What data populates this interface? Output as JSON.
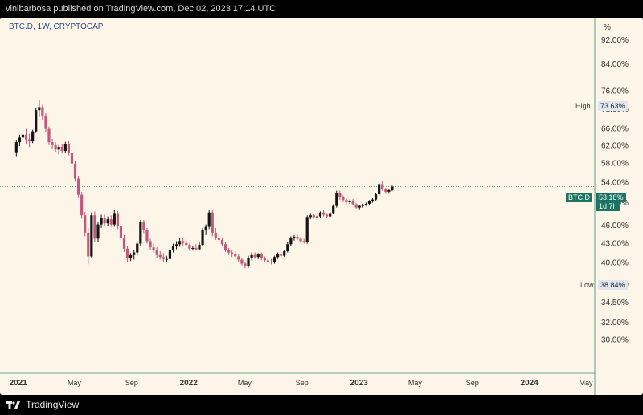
{
  "header": {
    "publisher_line": "vinibarbosa published on TradingView.com, Dec 02, 2023 17:14 UTC"
  },
  "chart_header": {
    "symbol_line": "BTC.D, 1W, CRYPTOCAP"
  },
  "axis": {
    "unit_label": "%"
  },
  "markers": {
    "high_label": "High",
    "high_value": "73.63%",
    "low_label": "Low",
    "low_value": "38.84%",
    "symbol_tag": "BTC.D",
    "current_value": "53.18%",
    "countdown": "1d 7h"
  },
  "footer": {
    "brand": "TradingView"
  },
  "colors": {
    "up": "#141414",
    "down": "#c2587a",
    "background": "#fdf5e8",
    "price_line": "#1d7362"
  },
  "chart_data": {
    "type": "candlestick",
    "title": "BTC.D, 1W, CRYPTOCAP",
    "y_scale": "log",
    "y_unit": "%",
    "ylim": [
      26.5,
      100
    ],
    "xlim": [
      "2020-11-23",
      "2024-05-20"
    ],
    "y_ticks": [
      "92.00%",
      "84.00%",
      "76.00%",
      "71.00%",
      "66.00%",
      "62.00%",
      "58.00%",
      "54.00%",
      "50.00%",
      "46.00%",
      "43.00%",
      "40.00%",
      "37.00%",
      "34.50%",
      "32.00%",
      "30.00%"
    ],
    "x_ticks": [
      {
        "date": "2021-01-01",
        "label": "2021"
      },
      {
        "date": "2021-05-01",
        "label": "May"
      },
      {
        "date": "2021-09-01",
        "label": "Sep"
      },
      {
        "date": "2022-01-01",
        "label": "2022"
      },
      {
        "date": "2022-05-01",
        "label": "May"
      },
      {
        "date": "2022-09-01",
        "label": "Sep"
      },
      {
        "date": "2023-01-01",
        "label": "2023"
      },
      {
        "date": "2023-05-01",
        "label": "May"
      },
      {
        "date": "2023-09-01",
        "label": "Sep"
      },
      {
        "date": "2024-01-01",
        "label": "2024"
      },
      {
        "date": "2024-05-01",
        "label": "May"
      }
    ],
    "high": 73.63,
    "low": 38.84,
    "last": 53.18,
    "series": [
      {
        "name": "BTC.D",
        "ohlc": [
          [
            60.5,
            63.2,
            59.6,
            62.8
          ],
          [
            62.8,
            64.6,
            61.9,
            63.9
          ],
          [
            63.9,
            65.5,
            63.0,
            64.6
          ],
          [
            64.6,
            66.0,
            62.5,
            63.5
          ],
          [
            63.5,
            64.8,
            61.7,
            63.0
          ],
          [
            63.0,
            65.8,
            62.6,
            65.4
          ],
          [
            65.4,
            71.5,
            65.0,
            70.8
          ],
          [
            70.8,
            73.63,
            69.0,
            71.6
          ],
          [
            71.6,
            72.2,
            68.2,
            69.4
          ],
          [
            69.4,
            70.0,
            65.2,
            66.0
          ],
          [
            66.0,
            66.6,
            62.1,
            62.8
          ],
          [
            62.8,
            63.6,
            61.3,
            62.1
          ],
          [
            62.1,
            62.8,
            60.6,
            61.1
          ],
          [
            61.1,
            62.2,
            60.0,
            61.7
          ],
          [
            61.7,
            62.4,
            60.2,
            60.8
          ],
          [
            60.8,
            62.9,
            60.4,
            62.4
          ],
          [
            62.4,
            63.0,
            59.8,
            60.4
          ],
          [
            60.4,
            61.0,
            57.2,
            58.0
          ],
          [
            58.0,
            58.6,
            54.2,
            54.8
          ],
          [
            54.8,
            55.4,
            51.0,
            51.6
          ],
          [
            51.6,
            52.2,
            47.2,
            47.8
          ],
          [
            47.8,
            48.4,
            44.2,
            44.8
          ],
          [
            44.8,
            45.6,
            39.8,
            41.0
          ],
          [
            41.0,
            48.3,
            40.8,
            47.8
          ],
          [
            47.8,
            48.5,
            43.2,
            43.8
          ],
          [
            43.8,
            46.6,
            43.2,
            46.2
          ],
          [
            46.2,
            47.9,
            45.6,
            47.4
          ],
          [
            47.4,
            47.9,
            46.0,
            46.4
          ],
          [
            46.4,
            47.6,
            45.9,
            47.1
          ],
          [
            47.1,
            47.8,
            45.8,
            46.2
          ],
          [
            46.2,
            48.8,
            45.8,
            48.2
          ],
          [
            48.2,
            48.6,
            45.4,
            45.9
          ],
          [
            45.9,
            46.3,
            43.4,
            43.9
          ],
          [
            43.9,
            44.4,
            41.7,
            42.2
          ],
          [
            42.2,
            42.6,
            40.2,
            40.7
          ],
          [
            40.7,
            41.5,
            40.3,
            41.2
          ],
          [
            41.2,
            42.0,
            40.5,
            41.6
          ],
          [
            41.6,
            43.4,
            41.1,
            43.0
          ],
          [
            43.0,
            47.0,
            42.6,
            46.6
          ],
          [
            46.6,
            47.0,
            44.7,
            45.2
          ],
          [
            45.2,
            45.6,
            43.0,
            43.4
          ],
          [
            43.4,
            43.8,
            42.0,
            42.4
          ],
          [
            42.4,
            43.0,
            41.6,
            42.0
          ],
          [
            42.0,
            42.4,
            40.8,
            41.2
          ],
          [
            41.2,
            41.8,
            40.5,
            40.9
          ],
          [
            40.9,
            41.5,
            40.2,
            40.6
          ],
          [
            40.6,
            41.1,
            40.2,
            40.6
          ],
          [
            40.6,
            42.3,
            40.4,
            42.0
          ],
          [
            42.0,
            43.0,
            41.6,
            42.6
          ],
          [
            42.6,
            43.4,
            42.1,
            42.9
          ],
          [
            42.9,
            43.9,
            42.5,
            43.4
          ],
          [
            43.4,
            43.9,
            42.7,
            43.1
          ],
          [
            43.1,
            43.6,
            42.6,
            42.8
          ],
          [
            42.8,
            43.0,
            41.9,
            42.2
          ],
          [
            42.2,
            42.6,
            41.9,
            42.3
          ],
          [
            42.3,
            42.9,
            41.9,
            42.1
          ],
          [
            42.1,
            43.2,
            41.9,
            42.8
          ],
          [
            42.8,
            45.6,
            42.6,
            45.3
          ],
          [
            45.3,
            46.2,
            44.4,
            45.8
          ],
          [
            45.8,
            48.8,
            45.4,
            48.3
          ],
          [
            48.3,
            48.7,
            44.2,
            44.8
          ],
          [
            44.8,
            45.6,
            43.6,
            44.0
          ],
          [
            44.0,
            44.6,
            43.2,
            43.6
          ],
          [
            43.6,
            44.0,
            42.6,
            42.9
          ],
          [
            42.9,
            43.3,
            41.7,
            42.0
          ],
          [
            42.0,
            42.3,
            41.2,
            41.6
          ],
          [
            41.6,
            42.0,
            40.9,
            41.3
          ],
          [
            41.3,
            41.8,
            40.6,
            41.0
          ],
          [
            41.0,
            41.4,
            40.2,
            40.5
          ],
          [
            40.5,
            40.8,
            39.6,
            39.9
          ],
          [
            39.9,
            40.2,
            39.2,
            39.5
          ],
          [
            39.5,
            41.1,
            39.3,
            40.8
          ],
          [
            40.8,
            41.6,
            40.4,
            41.2
          ],
          [
            41.2,
            41.6,
            40.6,
            40.9
          ],
          [
            40.9,
            41.5,
            40.6,
            41.3
          ],
          [
            41.3,
            41.6,
            40.4,
            40.7
          ],
          [
            40.7,
            41.0,
            40.1,
            40.4
          ],
          [
            40.4,
            40.8,
            39.9,
            40.2
          ],
          [
            40.2,
            40.6,
            39.8,
            40.1
          ],
          [
            40.1,
            41.1,
            39.9,
            40.9
          ],
          [
            40.9,
            41.6,
            40.6,
            41.3
          ],
          [
            41.3,
            41.7,
            40.8,
            41.1
          ],
          [
            41.1,
            42.0,
            40.9,
            41.8
          ],
          [
            41.8,
            43.2,
            41.6,
            42.9
          ],
          [
            42.9,
            44.2,
            42.6,
            43.9
          ],
          [
            43.9,
            44.4,
            43.5,
            44.1
          ],
          [
            44.1,
            44.6,
            43.6,
            43.8
          ],
          [
            43.8,
            44.1,
            43.1,
            43.4
          ],
          [
            43.4,
            43.8,
            43.0,
            43.2
          ],
          [
            43.2,
            47.8,
            43.0,
            47.5
          ],
          [
            47.5,
            48.2,
            47.1,
            47.8
          ],
          [
            47.8,
            48.1,
            47.2,
            47.5
          ],
          [
            47.5,
            48.0,
            47.0,
            47.6
          ],
          [
            47.6,
            48.5,
            47.4,
            48.3
          ],
          [
            48.3,
            48.7,
            47.6,
            47.9
          ],
          [
            47.9,
            48.2,
            47.3,
            47.6
          ],
          [
            47.6,
            48.4,
            47.4,
            48.2
          ],
          [
            48.2,
            49.8,
            48.0,
            49.5
          ],
          [
            49.5,
            52.4,
            49.2,
            52.0
          ],
          [
            52.0,
            52.4,
            50.6,
            51.1
          ],
          [
            51.1,
            51.5,
            50.2,
            50.6
          ],
          [
            50.6,
            50.9,
            49.8,
            50.2
          ],
          [
            50.2,
            50.7,
            49.9,
            50.4
          ],
          [
            50.4,
            50.8,
            49.6,
            49.8
          ],
          [
            49.8,
            50.0,
            49.0,
            49.2
          ],
          [
            49.2,
            49.7,
            48.9,
            49.5
          ],
          [
            49.5,
            49.9,
            49.2,
            49.7
          ],
          [
            49.7,
            50.1,
            49.5,
            49.9
          ],
          [
            49.9,
            50.6,
            49.7,
            50.4
          ],
          [
            50.4,
            50.9,
            50.1,
            50.7
          ],
          [
            50.7,
            51.9,
            50.5,
            51.7
          ],
          [
            51.7,
            53.9,
            51.5,
            53.7
          ],
          [
            53.7,
            54.3,
            52.4,
            52.7
          ],
          [
            52.7,
            53.0,
            51.8,
            52.2
          ],
          [
            52.2,
            52.8,
            51.8,
            52.5
          ],
          [
            52.5,
            53.4,
            52.3,
            53.18
          ]
        ]
      }
    ]
  }
}
